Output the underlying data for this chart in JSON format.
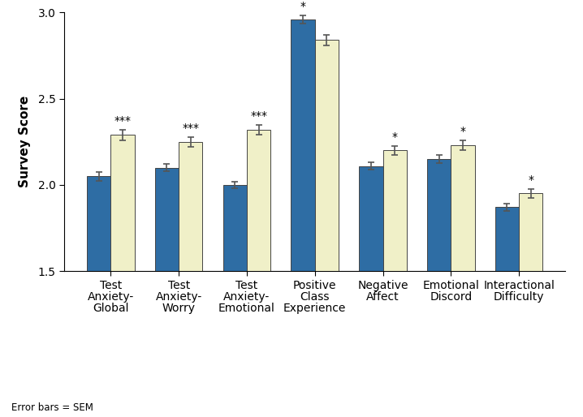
{
  "categories": [
    "Test\nAnxiety-\nGlobal",
    "Test\nAnxiety-\nWorry",
    "Test\nAnxiety-\nEmotional",
    "Positive\nClass\nExperience",
    "Negative\nAffect",
    "Emotional\nDiscord",
    "Interactional\nDifficulty"
  ],
  "exp_values": [
    2.05,
    2.1,
    2.0,
    2.96,
    2.11,
    2.15,
    1.87
  ],
  "ctrl_values": [
    2.29,
    2.25,
    2.32,
    2.84,
    2.2,
    2.23,
    1.95
  ],
  "exp_errors": [
    0.025,
    0.022,
    0.02,
    0.022,
    0.02,
    0.022,
    0.022
  ],
  "ctrl_errors": [
    0.03,
    0.028,
    0.028,
    0.032,
    0.025,
    0.03,
    0.028
  ],
  "significance": [
    "***",
    "***",
    "***",
    "*",
    "*",
    "*",
    "*"
  ],
  "sig_on_ctrl": [
    true,
    true,
    true,
    false,
    true,
    true,
    true
  ],
  "sig_on_exp": [
    false,
    false,
    false,
    true,
    false,
    false,
    false
  ],
  "exp_color": "#2E6DA4",
  "ctrl_color": "#F0F0C8",
  "ylabel": "Survey Score",
  "ylim": [
    1.5,
    3.0
  ],
  "yticks": [
    1.5,
    2.0,
    2.5,
    3.0
  ],
  "bar_width": 0.35,
  "error_bar_color": "#555555",
  "footnote": "Error bars = SEM",
  "axis_fontsize": 11,
  "tick_fontsize": 10,
  "legend_fontsize": 9,
  "sig_fontsize": 10
}
